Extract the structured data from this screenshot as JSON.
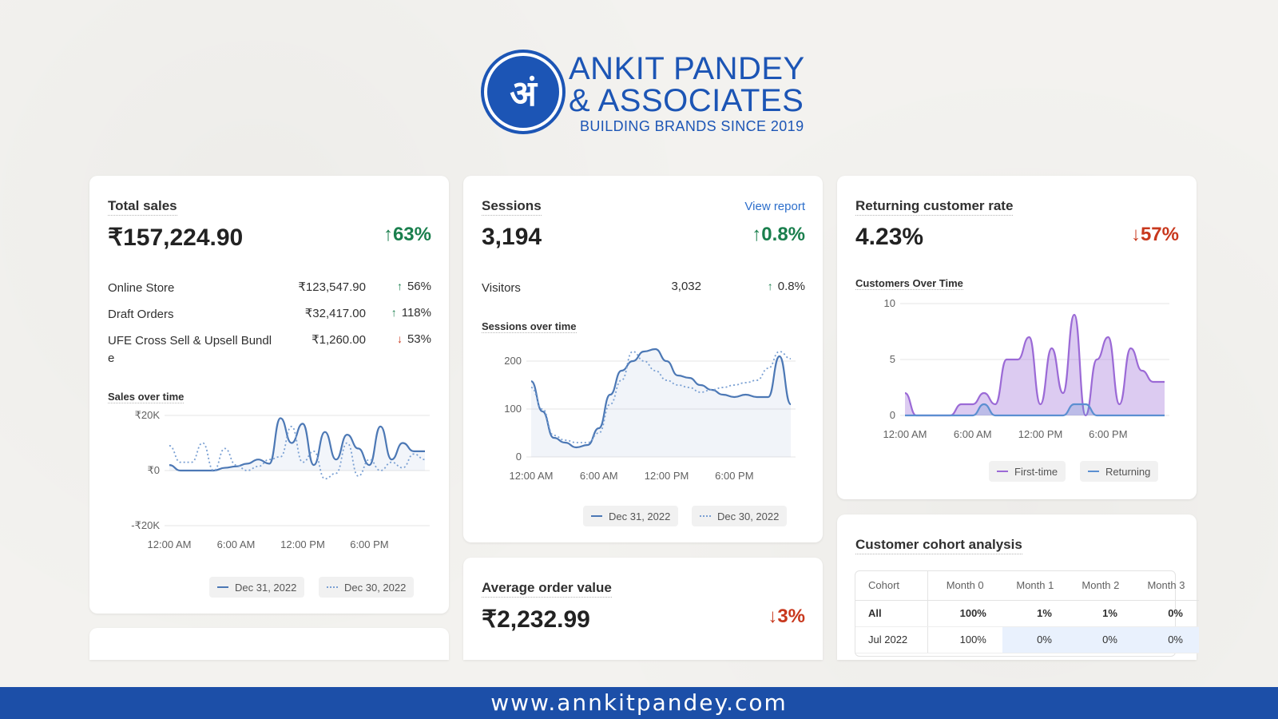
{
  "brand": {
    "name_line1": "ANKIT PANDEY",
    "name_line2": "& ASSOCIATES",
    "tagline": "BUILDING BRANDS SINCE 2019",
    "logo_glyph": "अं",
    "color": "#1c55b5"
  },
  "total_sales": {
    "title": "Total sales",
    "value": "₹157,224.90",
    "delta_arrow": "↑",
    "delta": "63%",
    "rows": [
      {
        "label": "Online Store",
        "value": "₹123,547.90",
        "arrow": "↑",
        "delta": "56%",
        "trend": "up"
      },
      {
        "label": "Draft Orders",
        "value": "₹32,417.00",
        "arrow": "↑",
        "delta": "118%",
        "trend": "up"
      },
      {
        "label": "UFE Cross Sell & Upsell Bundle",
        "value": "₹1,260.00",
        "arrow": "↓",
        "delta": "53%",
        "trend": "down"
      }
    ],
    "chart_title": "Sales over time",
    "legend": {
      "current": "Dec 31, 2022",
      "previous": "Dec 30, 2022"
    }
  },
  "sessions": {
    "title": "Sessions",
    "link": "View report",
    "value": "3,194",
    "delta_arrow": "↑",
    "delta": "0.8%",
    "visitors": {
      "label": "Visitors",
      "value": "3,032",
      "arrow": "↑",
      "delta": "0.8%"
    },
    "chart_title": "Sessions over time",
    "legend": {
      "current": "Dec 31, 2022",
      "previous": "Dec 30, 2022"
    }
  },
  "returning": {
    "title": "Returning customer rate",
    "value": "4.23%",
    "delta_arrow": "↓",
    "delta": "57%",
    "chart_title": "Customers Over Time",
    "legend": {
      "first": "First-time",
      "returning": "Returning"
    }
  },
  "aov": {
    "title": "Average order value",
    "value": "₹2,232.99",
    "delta_arrow": "↓",
    "delta": "3%"
  },
  "cohort": {
    "title": "Customer cohort analysis",
    "headers": [
      "Cohort",
      "Month 0",
      "Month 1",
      "Month 2",
      "Month 3"
    ],
    "rows": [
      {
        "name": "All",
        "cells": [
          "100%",
          "1%",
          "1%",
          "0%"
        ]
      },
      {
        "name": "Jul 2022",
        "cells": [
          "100%",
          "0%",
          "0%",
          "0%"
        ]
      }
    ]
  },
  "footer": {
    "url": "www.annkitpandey.com"
  },
  "colors": {
    "up": "#1a7f4d",
    "down": "#c8381d",
    "line_current": "#4c78b5",
    "line_first": "#9b6ad6",
    "line_returning": "#5b8fd1"
  },
  "chart_data": [
    {
      "type": "line",
      "title": "Sales over time",
      "x_ticks": [
        "12:00 AM",
        "6:00 AM",
        "12:00 PM",
        "6:00 PM"
      ],
      "y_ticks": [
        "₹20K",
        "₹0",
        "-₹20K"
      ],
      "ylim": [
        -20000,
        20000
      ],
      "x": [
        0,
        1,
        2,
        3,
        4,
        5,
        6,
        7,
        8,
        9,
        10,
        11,
        12,
        13,
        14,
        15,
        16,
        17,
        18,
        19,
        20,
        21,
        22,
        23
      ],
      "series": [
        {
          "name": "Dec 31, 2022",
          "style": "solid",
          "values": [
            2000,
            0,
            0,
            0,
            0,
            1000,
            1500,
            2500,
            4000,
            2500,
            19000,
            10000,
            17000,
            2000,
            14000,
            4000,
            13000,
            8000,
            2000,
            16000,
            4000,
            10000,
            7000,
            7000
          ]
        },
        {
          "name": "Dec 30, 2022",
          "style": "dotted",
          "values": [
            9000,
            3000,
            3000,
            10000,
            0,
            8000,
            2000,
            0,
            1500,
            4000,
            5000,
            16000,
            3000,
            7000,
            -3000,
            -1000,
            10000,
            -2000,
            4000,
            0,
            3000,
            1000,
            6000,
            4000
          ]
        }
      ]
    },
    {
      "type": "line",
      "title": "Sessions over time",
      "x_ticks": [
        "12:00 AM",
        "6:00 AM",
        "12:00 PM",
        "6:00 PM"
      ],
      "y_ticks": [
        "200",
        "100",
        "0"
      ],
      "ylim": [
        0,
        200
      ],
      "x": [
        0,
        1,
        2,
        3,
        4,
        5,
        6,
        7,
        8,
        9,
        10,
        11,
        12,
        13,
        14,
        15,
        16,
        17,
        18,
        19,
        20,
        21,
        22,
        23
      ],
      "series": [
        {
          "name": "Dec 31, 2022",
          "style": "solid",
          "values": [
            158,
            95,
            40,
            30,
            20,
            25,
            60,
            130,
            180,
            200,
            220,
            225,
            200,
            170,
            165,
            150,
            140,
            130,
            125,
            130,
            125,
            125,
            210,
            110
          ]
        },
        {
          "name": "Dec 30, 2022",
          "style": "dotted",
          "values": [
            145,
            100,
            45,
            35,
            30,
            30,
            50,
            110,
            160,
            220,
            200,
            180,
            160,
            150,
            145,
            135,
            140,
            145,
            150,
            155,
            160,
            185,
            220,
            205
          ]
        }
      ]
    },
    {
      "type": "area",
      "title": "Customers Over Time",
      "x_ticks": [
        "12:00 AM",
        "6:00 AM",
        "12:00 PM",
        "6:00 PM"
      ],
      "y_ticks": [
        "10",
        "5",
        "0"
      ],
      "ylim": [
        0,
        10
      ],
      "x": [
        0,
        1,
        2,
        3,
        4,
        5,
        6,
        7,
        8,
        9,
        10,
        11,
        12,
        13,
        14,
        15,
        16,
        17,
        18,
        19,
        20,
        21,
        22,
        23
      ],
      "series": [
        {
          "name": "First-time",
          "values": [
            2,
            0,
            0,
            0,
            0,
            1,
            1,
            2,
            1,
            5,
            5,
            7,
            1,
            6,
            2,
            9,
            0,
            5,
            7,
            1,
            6,
            4,
            3,
            3
          ]
        },
        {
          "name": "Returning",
          "values": [
            0,
            0,
            0,
            0,
            0,
            0,
            0,
            1,
            0,
            0,
            0,
            0,
            0,
            0,
            0,
            1,
            1,
            0,
            0,
            0,
            0,
            0,
            0,
            0
          ]
        }
      ]
    }
  ]
}
